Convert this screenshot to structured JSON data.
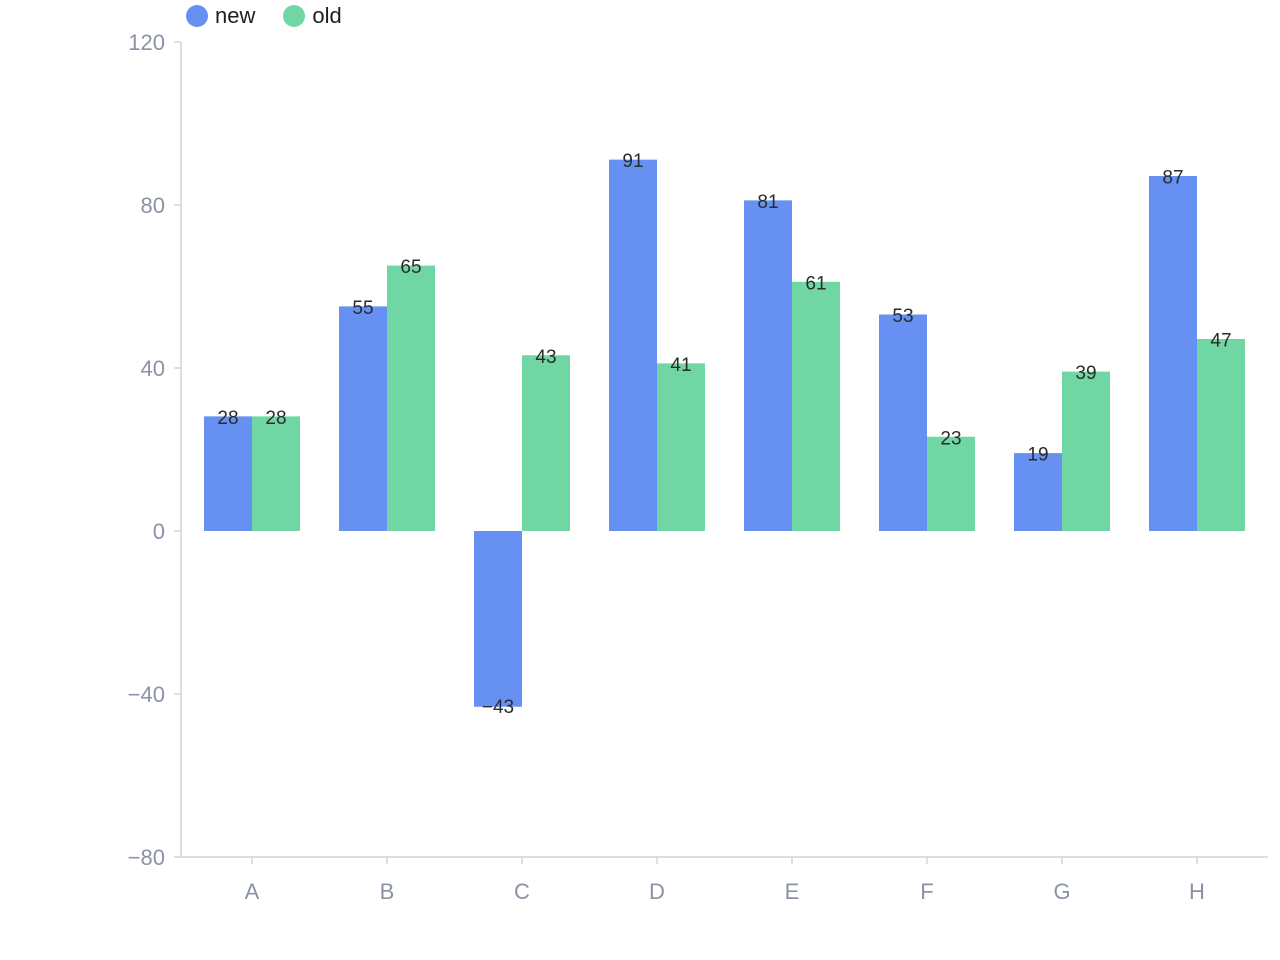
{
  "chart_data": {
    "type": "bar",
    "categories": [
      "A",
      "B",
      "C",
      "D",
      "E",
      "F",
      "G",
      "H"
    ],
    "series": [
      {
        "name": "new",
        "color": "#6690F2",
        "values": [
          28,
          55,
          -43,
          91,
          81,
          53,
          19,
          87
        ]
      },
      {
        "name": "old",
        "color": "#70D6A3",
        "values": [
          28,
          65,
          43,
          41,
          61,
          23,
          39,
          47
        ]
      }
    ],
    "ylim": [
      -80,
      120
    ],
    "yticks": [
      -80,
      -40,
      0,
      40,
      80,
      120
    ],
    "ytick_labels": [
      "−80",
      "−40",
      "0",
      "40",
      "80",
      "120"
    ],
    "legend_position": "top-left",
    "grid": false,
    "data_labels": true,
    "title": "",
    "xlabel": "",
    "ylabel": ""
  }
}
